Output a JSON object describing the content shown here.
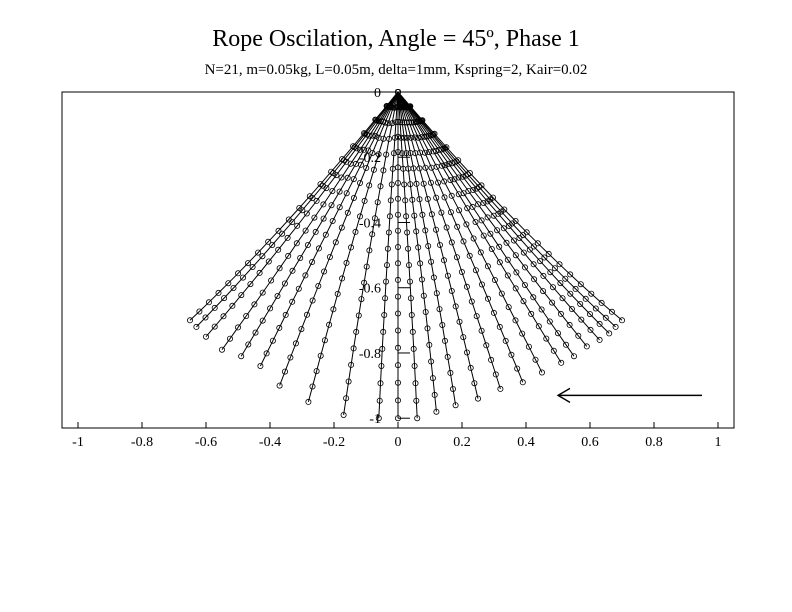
{
  "chart_data": {
    "type": "scatter",
    "title": "Rope Oscilation, Angle = 45º, Phase 1",
    "subtitle": "N=21, m=0.05kg, L=0.05m, delta=1mm, Kspring=2,  Kair=0.02",
    "xlim": [
      -1.05,
      1.05
    ],
    "ylim": [
      -1.03,
      0.0
    ],
    "x_ticks": [
      "-1",
      "-0.8",
      "-0.6",
      "-0.4",
      "-0.2",
      "0",
      "0.2",
      "0.4",
      "0.6",
      "0.8",
      "1"
    ],
    "x_tick_values": [
      -1,
      -0.8,
      -0.6,
      -0.4,
      -0.2,
      0,
      0.2,
      0.4,
      0.6,
      0.8,
      1
    ],
    "y_ticks": [
      "0",
      "-0.2",
      "-0.4",
      "-0.6",
      "-0.8",
      "-1"
    ],
    "y_tick_values": [
      0,
      -0.2,
      -0.4,
      -0.6,
      -0.8,
      -1
    ],
    "grid": false,
    "rope": {
      "nodes": 21,
      "segment_length": 0.05
    },
    "snapshots_anchor": [
      0,
      0
    ],
    "snapshot_endpoints": [
      {
        "x": 0.7,
        "y": -0.7
      },
      {
        "x": 0.68,
        "y": -0.72
      },
      {
        "x": 0.66,
        "y": -0.74
      },
      {
        "x": 0.63,
        "y": -0.76
      },
      {
        "x": 0.59,
        "y": -0.78
      },
      {
        "x": 0.55,
        "y": -0.81
      },
      {
        "x": 0.51,
        "y": -0.83
      },
      {
        "x": 0.45,
        "y": -0.86
      },
      {
        "x": 0.39,
        "y": -0.89
      },
      {
        "x": 0.32,
        "y": -0.91
      },
      {
        "x": 0.25,
        "y": -0.94
      },
      {
        "x": 0.18,
        "y": -0.96
      },
      {
        "x": 0.12,
        "y": -0.98
      },
      {
        "x": 0.06,
        "y": -1.0
      },
      {
        "x": 0.0,
        "y": -1.0
      },
      {
        "x": -0.06,
        "y": -1.0
      },
      {
        "x": -0.17,
        "y": -0.99
      },
      {
        "x": -0.28,
        "y": -0.95
      },
      {
        "x": -0.37,
        "y": -0.9
      },
      {
        "x": -0.43,
        "y": -0.84
      },
      {
        "x": -0.49,
        "y": -0.81
      },
      {
        "x": -0.55,
        "y": -0.79
      },
      {
        "x": -0.6,
        "y": -0.75
      },
      {
        "x": -0.63,
        "y": -0.72
      },
      {
        "x": -0.65,
        "y": -0.7
      }
    ],
    "annotation_arrow": {
      "from": [
        0.95,
        -0.93
      ],
      "to": [
        0.5,
        -0.93
      ],
      "direction": "left"
    }
  }
}
